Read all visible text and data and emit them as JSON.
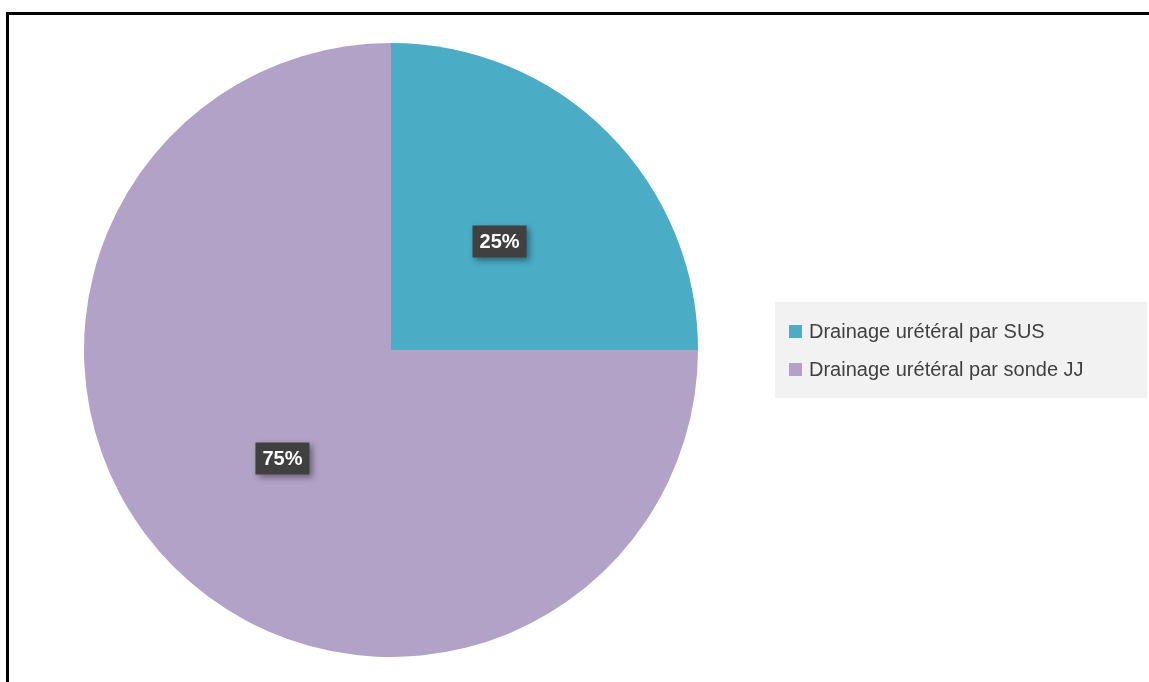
{
  "chart_data": {
    "type": "pie",
    "categories": [
      "Drainage urétéral par SUS",
      "Drainage urétéral par sonde JJ"
    ],
    "values": [
      25,
      75
    ],
    "colors": [
      "#4bacc6",
      "#b3a2c7"
    ],
    "value_labels": [
      "25%",
      "75%"
    ],
    "legend": "right"
  }
}
